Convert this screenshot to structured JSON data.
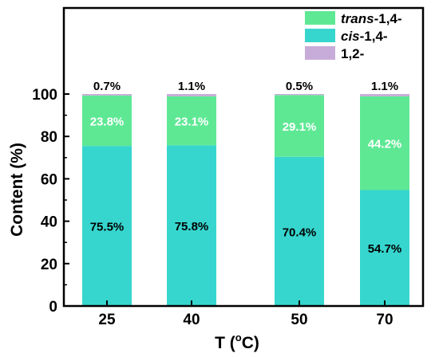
{
  "chart_data": {
    "type": "bar",
    "stacked": true,
    "xlabel_main": "T (",
    "xlabel_sup": "o",
    "xlabel_end": "C)",
    "ylabel": "Content (%)",
    "ylim": [
      0,
      100
    ],
    "yticks": [
      0,
      20,
      40,
      60,
      80,
      100
    ],
    "categories": [
      "25",
      "40",
      "50",
      "70"
    ],
    "series": [
      {
        "name_italic": "cis",
        "name_rest": "-1,4-",
        "color": "#36d6cf",
        "label_color": "#000000",
        "values": [
          75.5,
          75.8,
          70.4,
          54.7
        ],
        "labels": [
          "75.5%",
          "75.8%",
          "70.4%",
          "54.7%"
        ]
      },
      {
        "name_italic": "trans",
        "name_rest": "-1,4-",
        "color": "#5fe894",
        "label_color": "#ffffff",
        "values": [
          23.8,
          23.1,
          29.1,
          44.2
        ],
        "labels": [
          "23.8%",
          "23.1%",
          "29.1%",
          "44.2%"
        ]
      },
      {
        "name_italic": "",
        "name_rest": "1,2-",
        "color": "#c7acd9",
        "label_color": "#000000",
        "values": [
          0.7,
          1.1,
          0.5,
          1.1
        ],
        "labels": [
          "0.7%",
          "1.1%",
          "0.5%",
          "1.1%"
        ]
      }
    ],
    "legend_order": [
      1,
      0,
      2
    ],
    "legend_position": "top-right",
    "grid": false
  }
}
